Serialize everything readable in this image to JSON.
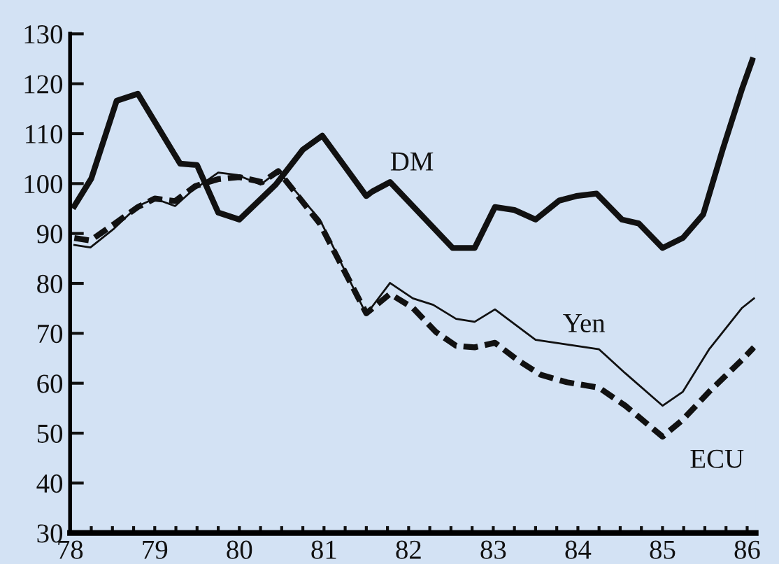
{
  "chart_data": {
    "type": "line",
    "xlim": [
      78,
      86.1
    ],
    "ylim": [
      30,
      130
    ],
    "xticks": [
      78,
      {
        "value": 78.25,
        "label": null
      },
      {
        "value": 78.5,
        "label": null
      },
      {
        "value": 78.75,
        "label": null
      },
      79,
      {
        "value": 79.25,
        "label": null
      },
      {
        "value": 79.5,
        "label": null
      },
      {
        "value": 79.75,
        "label": null
      },
      80,
      {
        "value": 80.25,
        "label": null
      },
      {
        "value": 80.5,
        "label": null
      },
      {
        "value": 80.75,
        "label": null
      },
      81,
      {
        "value": 81.25,
        "label": null
      },
      {
        "value": 81.5,
        "label": null
      },
      {
        "value": 81.75,
        "label": null
      },
      82,
      {
        "value": 82.25,
        "label": null
      },
      {
        "value": 82.5,
        "label": null
      },
      {
        "value": 82.75,
        "label": null
      },
      83,
      {
        "value": 83.25,
        "label": null
      },
      {
        "value": 83.5,
        "label": null
      },
      {
        "value": 83.75,
        "label": null
      },
      84,
      {
        "value": 84.25,
        "label": null
      },
      {
        "value": 84.5,
        "label": null
      },
      {
        "value": 84.75,
        "label": null
      },
      85,
      {
        "value": 85.25,
        "label": null
      },
      {
        "value": 85.5,
        "label": null
      },
      {
        "value": 85.75,
        "label": null
      },
      86
    ],
    "yticks": [
      30,
      40,
      50,
      60,
      70,
      80,
      90,
      100,
      110,
      120,
      130
    ],
    "grid": false,
    "legend": false,
    "marker": "none",
    "series": [
      {
        "name": "DM",
        "color": "#111111",
        "line_style": "solid",
        "x": [
          78.05,
          78.25,
          78.55,
          78.8,
          79.0,
          79.3,
          79.5,
          79.75,
          80.0,
          80.43,
          80.75,
          80.98,
          81.35,
          81.5,
          81.57,
          81.78,
          82.52,
          82.78,
          83.02,
          83.25,
          83.5,
          83.78,
          83.98,
          84.22,
          84.52,
          84.72,
          85.0,
          85.24,
          85.48,
          85.71,
          85.94,
          86.06
        ],
        "values": [
          95.5,
          101,
          116.6,
          118,
          112.4,
          104,
          103.7,
          94.2,
          92.8,
          99.8,
          106.8,
          109.6,
          101,
          97.5,
          98.4,
          100.3,
          87.1,
          87.1,
          95.3,
          94.7,
          92.8,
          96.6,
          97.5,
          98,
          92.8,
          92,
          87.1,
          89.1,
          93.8,
          106.8,
          119,
          124.7
        ]
      },
      {
        "name": "Yen",
        "color": "#111111",
        "line_style": "solid",
        "x": [
          78.05,
          78.24,
          78.52,
          78.8,
          79.0,
          79.24,
          79.43,
          79.75,
          79.98,
          80.25,
          80.46,
          80.95,
          81.5,
          81.78,
          82.05,
          82.29,
          82.56,
          82.78,
          83.02,
          83.5,
          84.25,
          84.56,
          85.0,
          85.24,
          85.55,
          85.94,
          86.08
        ],
        "values": [
          87.7,
          87.2,
          91,
          95.5,
          97,
          95.5,
          98.4,
          102.2,
          101.7,
          99.8,
          102.5,
          92.8,
          73.8,
          80.1,
          77,
          75.7,
          72.9,
          72.3,
          74.8,
          68.7,
          66.8,
          62,
          55.5,
          58.3,
          66.8,
          75.1,
          77
        ]
      },
      {
        "name": "ECU",
        "color": "#111111",
        "line_style": "dashed",
        "x": [
          78.05,
          78.24,
          78.52,
          78.8,
          79.0,
          79.24,
          79.48,
          79.75,
          80.0,
          80.27,
          80.46,
          80.95,
          81.5,
          81.78,
          82.05,
          82.32,
          82.56,
          82.78,
          83.02,
          83.3,
          83.56,
          83.87,
          84.25,
          84.56,
          85.0,
          85.24,
          85.55,
          85.94,
          86.08
        ],
        "values": [
          89.1,
          88.6,
          91.9,
          95.3,
          97,
          96.5,
          99.5,
          100.9,
          101.3,
          100.3,
          102.5,
          92,
          74,
          77.9,
          75.1,
          70.3,
          67.5,
          67.2,
          68.1,
          64.5,
          61.7,
          60.2,
          59.1,
          55.5,
          49.3,
          52.7,
          58.3,
          64.7,
          67.2
        ]
      }
    ]
  }
}
